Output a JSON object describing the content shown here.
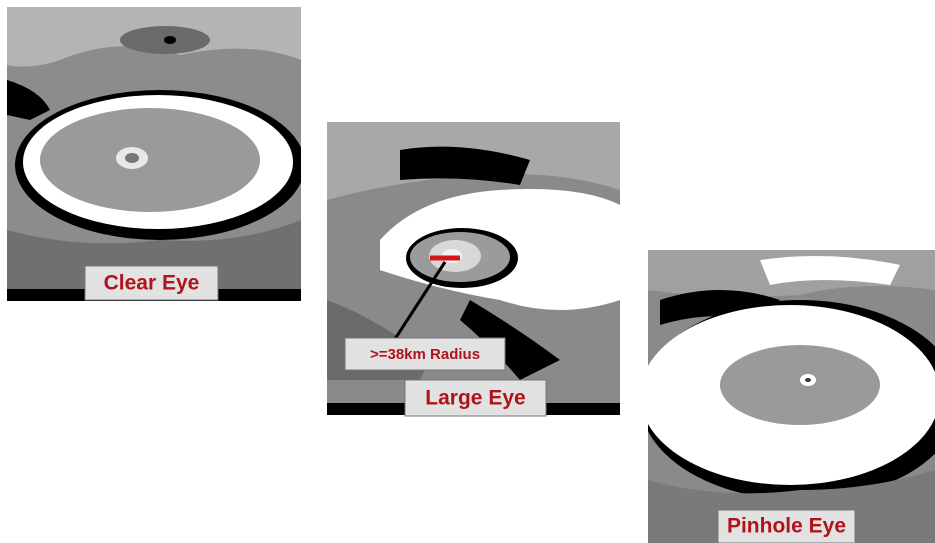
{
  "panels": [
    {
      "label": "Clear Eye"
    },
    {
      "label": "Large Eye",
      "annotation": ">=38km Radius"
    },
    {
      "label": "Pinhole Eye"
    }
  ]
}
